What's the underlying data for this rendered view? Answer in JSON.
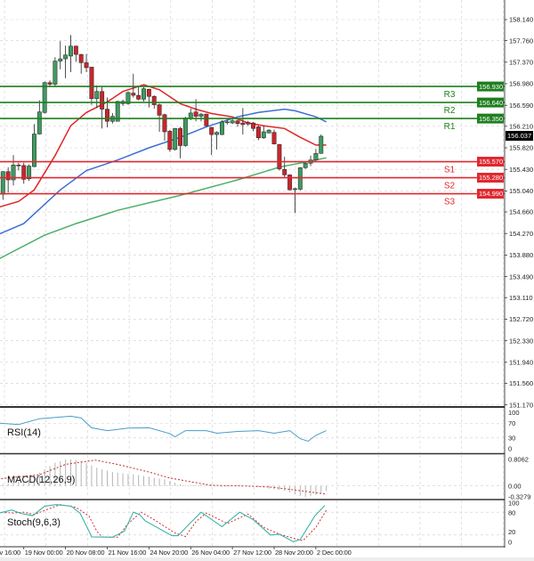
{
  "colors": {
    "bull": "#3f9a60",
    "bear": "#c8262b",
    "candle_outline": "#222222",
    "ma_fast": "#e02525",
    "ma_mid": "#3d6fd6",
    "ma_slow": "#4caf6a",
    "resistance": "#1f7f1f",
    "support": "#e0282f",
    "current": "#000000",
    "rsi": "#4a9cc8",
    "macd_hist": "#b4b4b4",
    "macd_signal": "#c03030",
    "stoch_main": "#3cb3a8",
    "stoch_signal": "#d03030",
    "grid": "#cfcfcf"
  },
  "chart_data": [
    {
      "type": "candlestick",
      "price_axis": {
        "ticks": [
          "158.140",
          "157.760",
          "157.370",
          "156.980",
          "156.590",
          "156.210",
          "155.820",
          "155.430",
          "155.040",
          "154.660",
          "154.270",
          "153.880",
          "153.490",
          "153.110",
          "152.720",
          "152.330",
          "151.940",
          "151.560",
          "151.170"
        ],
        "range": [
          151.17,
          158.14
        ]
      },
      "time_axis": {
        "labels": [
          "v 16:00",
          "19 Nov 00:00",
          "20 Nov 08:00",
          "21 Nov 16:00",
          "24 Nov 20:00",
          "26 Nov 04:00",
          "27 Nov 12:00",
          "28 Nov 20:00",
          "2 Dec 00:00"
        ]
      },
      "candles_ohlc": [
        [
          154.98,
          155.4,
          154.88,
          155.39
        ],
        [
          155.39,
          155.47,
          155.01,
          155.24
        ],
        [
          155.24,
          155.69,
          155.14,
          155.51
        ],
        [
          155.51,
          155.55,
          155.41,
          155.5
        ],
        [
          155.5,
          155.55,
          155.17,
          155.25
        ],
        [
          155.26,
          155.52,
          155.22,
          155.49
        ],
        [
          155.48,
          156.25,
          155.47,
          156.07
        ],
        [
          156.07,
          156.68,
          156.06,
          156.47
        ],
        [
          156.46,
          157.02,
          156.44,
          157.0
        ],
        [
          157.0,
          157.04,
          156.92,
          156.97
        ],
        [
          156.97,
          157.46,
          156.92,
          157.39
        ],
        [
          157.39,
          157.75,
          157.24,
          157.43
        ],
        [
          157.43,
          157.67,
          157.08,
          157.5
        ],
        [
          157.48,
          157.86,
          157.19,
          157.66
        ],
        [
          157.66,
          157.67,
          157.38,
          157.51
        ],
        [
          157.51,
          157.52,
          157.16,
          157.36
        ],
        [
          157.36,
          157.52,
          157.19,
          157.27
        ],
        [
          157.28,
          157.28,
          156.6,
          156.71
        ],
        [
          156.71,
          156.95,
          156.54,
          156.84
        ],
        [
          156.84,
          156.92,
          156.17,
          156.52
        ],
        [
          156.52,
          156.73,
          156.19,
          156.3
        ],
        [
          156.3,
          156.45,
          156.26,
          156.39
        ],
        [
          156.3,
          156.67,
          156.3,
          156.66
        ],
        [
          156.62,
          156.69,
          156.58,
          156.66
        ],
        [
          156.62,
          156.84,
          156.6,
          156.82
        ],
        [
          156.81,
          157.16,
          156.73,
          156.77
        ],
        [
          156.77,
          156.93,
          156.68,
          156.7
        ],
        [
          156.7,
          156.92,
          156.66,
          156.89
        ],
        [
          156.88,
          156.89,
          156.55,
          156.75
        ],
        [
          156.75,
          156.77,
          156.53,
          156.6
        ],
        [
          156.6,
          156.62,
          156.11,
          156.41
        ],
        [
          156.42,
          156.44,
          155.95,
          156.11
        ],
        [
          156.12,
          156.14,
          155.75,
          155.79
        ],
        [
          155.79,
          156.18,
          155.77,
          156.17
        ],
        [
          156.17,
          156.2,
          155.63,
          155.86
        ],
        [
          155.86,
          156.38,
          155.84,
          156.36
        ],
        [
          156.35,
          156.53,
          156.32,
          156.45
        ],
        [
          156.47,
          156.7,
          156.3,
          156.39
        ],
        [
          156.39,
          156.45,
          156.3,
          156.43
        ],
        [
          156.43,
          156.44,
          156.2,
          156.22
        ],
        [
          156.19,
          156.2,
          155.69,
          156.06
        ],
        [
          156.06,
          156.12,
          155.79,
          156.1
        ],
        [
          156.06,
          156.32,
          156.05,
          156.29
        ],
        [
          156.29,
          156.33,
          156.24,
          156.29
        ],
        [
          156.27,
          156.36,
          156.25,
          156.31
        ],
        [
          156.31,
          156.33,
          156.2,
          156.26
        ],
        [
          156.27,
          156.54,
          156.06,
          156.24
        ],
        [
          156.28,
          156.31,
          156.22,
          156.25
        ],
        [
          156.27,
          156.29,
          156.12,
          156.17
        ],
        [
          156.2,
          156.22,
          155.96,
          156.0
        ],
        [
          156.0,
          156.22,
          155.98,
          156.11
        ],
        [
          156.09,
          156.16,
          156.08,
          156.14
        ],
        [
          156.1,
          156.15,
          155.88,
          155.89
        ],
        [
          155.88,
          155.89,
          155.41,
          155.44
        ],
        [
          155.43,
          155.66,
          155.28,
          155.33
        ],
        [
          155.33,
          155.34,
          155.05,
          155.06
        ],
        [
          155.07,
          155.1,
          154.64,
          155.08
        ],
        [
          155.07,
          155.47,
          155.05,
          155.46
        ],
        [
          155.46,
          155.57,
          155.44,
          155.54
        ],
        [
          155.54,
          155.68,
          155.49,
          155.6
        ],
        [
          155.6,
          155.8,
          155.58,
          155.72
        ],
        [
          155.72,
          156.06,
          155.71,
          156.03
        ]
      ],
      "moving_averages": [
        {
          "points": [
            [
              -1,
              154.74
            ],
            [
              3,
              154.85
            ],
            [
              6,
              155.06
            ],
            [
              10,
              155.68
            ],
            [
              13,
              156.22
            ],
            [
              16,
              156.46
            ],
            [
              20,
              156.65
            ],
            [
              23,
              156.84
            ],
            [
              27,
              156.96
            ],
            [
              30,
              156.87
            ],
            [
              34,
              156.62
            ],
            [
              37,
              156.52
            ],
            [
              40,
              156.44
            ],
            [
              44,
              156.38
            ],
            [
              47,
              156.27
            ],
            [
              50,
              156.22
            ],
            [
              54,
              156.17
            ],
            [
              57,
              156.01
            ],
            [
              60,
              155.87
            ],
            [
              62,
              155.87
            ]
          ]
        },
        {
          "points": [
            [
              -1,
              154.25
            ],
            [
              4,
              154.45
            ],
            [
              11,
              155.06
            ],
            [
              16,
              155.41
            ],
            [
              22,
              155.6
            ],
            [
              28,
              155.82
            ],
            [
              34,
              156.01
            ],
            [
              39,
              156.2
            ],
            [
              45,
              156.38
            ],
            [
              49,
              156.46
            ],
            [
              54,
              156.52
            ],
            [
              56,
              156.49
            ],
            [
              60,
              156.38
            ],
            [
              62,
              156.29
            ]
          ]
        },
        {
          "points": [
            [
              -1,
              153.8
            ],
            [
              8,
              154.24
            ],
            [
              14,
              154.45
            ],
            [
              22,
              154.69
            ],
            [
              34,
              154.96
            ],
            [
              45,
              155.24
            ],
            [
              53,
              155.47
            ],
            [
              59,
              155.58
            ],
            [
              62,
              155.64
            ]
          ]
        }
      ],
      "pivots": [
        {
          "name": "R3",
          "value": "156.930",
          "kind": "resistance"
        },
        {
          "name": "R2",
          "value": "156.640",
          "kind": "resistance"
        },
        {
          "name": "R1",
          "value": "156.350",
          "kind": "resistance"
        },
        {
          "name": "S1",
          "value": "155.570",
          "kind": "support"
        },
        {
          "name": "S2",
          "value": "155.280",
          "kind": "support"
        },
        {
          "name": "S3",
          "value": "154.990",
          "kind": "support"
        }
      ],
      "current_price": "156.037"
    },
    {
      "type": "line",
      "title": "RSI(14)",
      "axis_labels": [
        "100",
        "70",
        "30",
        "0"
      ],
      "levels": [
        70,
        30
      ],
      "ylim": [
        0,
        100
      ],
      "points": [
        [
          -1,
          71
        ],
        [
          3,
          67
        ],
        [
          7,
          83
        ],
        [
          13,
          90
        ],
        [
          15,
          85
        ],
        [
          17,
          58
        ],
        [
          20,
          50
        ],
        [
          24,
          57
        ],
        [
          28,
          58
        ],
        [
          32,
          42
        ],
        [
          33,
          33
        ],
        [
          35,
          50
        ],
        [
          39,
          50
        ],
        [
          41,
          43
        ],
        [
          45,
          48
        ],
        [
          49,
          50
        ],
        [
          52,
          43
        ],
        [
          55,
          50
        ],
        [
          57,
          28
        ],
        [
          58.5,
          21
        ],
        [
          60,
          37
        ],
        [
          62,
          50
        ]
      ]
    },
    {
      "type": "bar",
      "title": "MACD(12,26,9)",
      "axis_labels": [
        "0.8062",
        "0.00",
        "-0.3279"
      ],
      "ylim": [
        -0.3279,
        0.8062
      ],
      "histogram": [
        0.05,
        0.08,
        0.1,
        0.12,
        0.15,
        0.2,
        0.3,
        0.4,
        0.5,
        0.6,
        0.7,
        0.75,
        0.8,
        0.8,
        0.79,
        0.75,
        0.7,
        0.62,
        0.55,
        0.5,
        0.46,
        0.42,
        0.4,
        0.38,
        0.36,
        0.35,
        0.33,
        0.3,
        0.28,
        0.25,
        0.22,
        0.2,
        0.15,
        0.1,
        0.05,
        0.02,
        0.02,
        0.03,
        0.05,
        0.04,
        0.03,
        0.0,
        -0.02,
        -0.02,
        -0.01,
        0,
        0,
        -0.01,
        -0.02,
        -0.03,
        -0.05,
        -0.08,
        -0.1,
        -0.12,
        -0.15,
        -0.2,
        -0.25,
        -0.3,
        -0.33,
        -0.3,
        -0.27,
        -0.22,
        -0.15
      ],
      "signal": [
        [
          -1,
          0.21
        ],
        [
          7,
          0.34
        ],
        [
          12,
          0.65
        ],
        [
          17.7,
          0.78
        ],
        [
          22,
          0.65
        ],
        [
          28,
          0.42
        ],
        [
          32,
          0.24
        ],
        [
          37,
          0.1
        ],
        [
          40,
          0.02
        ],
        [
          46,
          0.0
        ],
        [
          51,
          -0.03
        ],
        [
          56,
          -0.12
        ],
        [
          62,
          -0.25
        ]
      ]
    },
    {
      "type": "line",
      "title": "Stoch(9,6,3)",
      "axis_labels": [
        "100",
        "80",
        "20",
        "0"
      ],
      "levels": [
        80,
        20
      ],
      "ylim": [
        0,
        100
      ],
      "main": [
        [
          -1,
          77
        ],
        [
          1.7,
          86
        ],
        [
          3.4,
          77
        ],
        [
          5.7,
          71
        ],
        [
          8,
          96
        ],
        [
          10.2,
          100
        ],
        [
          13.1,
          96
        ],
        [
          14.8,
          77
        ],
        [
          16.5,
          30
        ],
        [
          17,
          15
        ],
        [
          21,
          14
        ],
        [
          23.3,
          30
        ],
        [
          25,
          80
        ],
        [
          26.2,
          74
        ],
        [
          27.3,
          57
        ],
        [
          32.4,
          18
        ],
        [
          33.6,
          18
        ],
        [
          35.8,
          50
        ],
        [
          38,
          80
        ],
        [
          42,
          42
        ],
        [
          45.4,
          80
        ],
        [
          48,
          60
        ],
        [
          51.3,
          20
        ],
        [
          53,
          22
        ],
        [
          55.7,
          2
        ],
        [
          57,
          8
        ],
        [
          59.8,
          70
        ],
        [
          61.7,
          98
        ]
      ],
      "signal": [
        [
          -1,
          80
        ],
        [
          2,
          78
        ],
        [
          4,
          80
        ],
        [
          6,
          74
        ],
        [
          9,
          90
        ],
        [
          11,
          100
        ],
        [
          14,
          93
        ],
        [
          16.5,
          70
        ],
        [
          18,
          30
        ],
        [
          19,
          15
        ],
        [
          22,
          14
        ],
        [
          24,
          50
        ],
        [
          26.5,
          80
        ],
        [
          29,
          60
        ],
        [
          33,
          25
        ],
        [
          35,
          16
        ],
        [
          37,
          55
        ],
        [
          39,
          78
        ],
        [
          43,
          50
        ],
        [
          47,
          75
        ],
        [
          50,
          40
        ],
        [
          53,
          22
        ],
        [
          56,
          10
        ],
        [
          57.5,
          5
        ],
        [
          60,
          40
        ],
        [
          62,
          85
        ]
      ]
    }
  ]
}
